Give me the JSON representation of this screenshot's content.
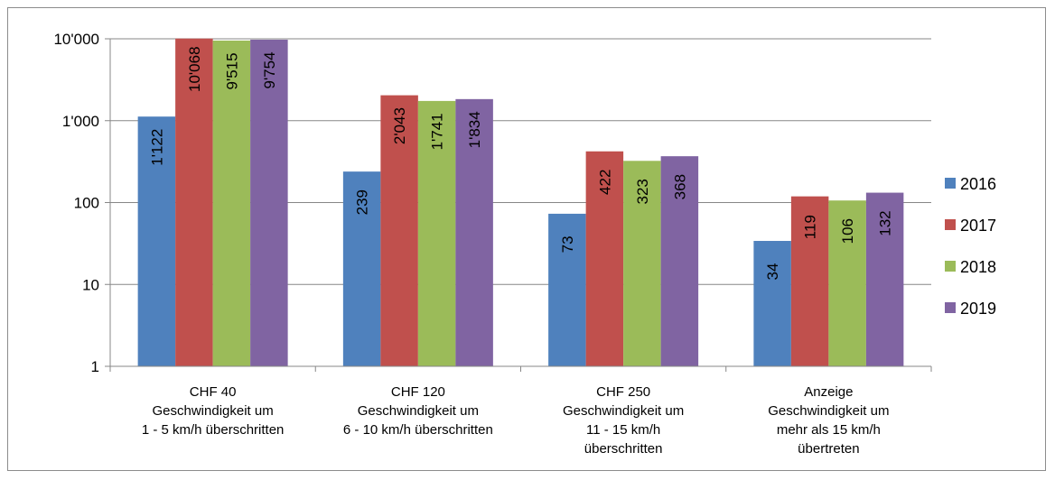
{
  "chart_data": {
    "type": "bar",
    "yscale": "log",
    "ylim": [
      1,
      10000
    ],
    "yticks": [
      {
        "value": 1,
        "label": "1"
      },
      {
        "value": 10,
        "label": "10"
      },
      {
        "value": 100,
        "label": "100"
      },
      {
        "value": 1000,
        "label": "1'000"
      },
      {
        "value": 10000,
        "label": "10'000"
      }
    ],
    "grid": true,
    "legend_position": "right",
    "categories": [
      [
        "CHF  40",
        "Geschwindigkeit um",
        "1 - 5 km/h überschritten"
      ],
      [
        "CHF  120",
        "Geschwindigkeit um",
        "6 - 10 km/h überschritten"
      ],
      [
        "CHF  250",
        "Geschwindigkeit um",
        "11 - 15 km/h",
        "überschritten"
      ],
      [
        "Anzeige",
        "Geschwindigkeit um",
        "mehr als 15 km/h",
        "übertreten"
      ]
    ],
    "series": [
      {
        "name": "2016",
        "color": "#4f81bd",
        "values": [
          1122,
          239,
          73,
          34
        ],
        "labels": [
          "1'122",
          "239",
          "73",
          "34"
        ]
      },
      {
        "name": "2017",
        "color": "#c0504d",
        "values": [
          10068,
          2043,
          422,
          119
        ],
        "labels": [
          "10'068",
          "2'043",
          "422",
          "119"
        ]
      },
      {
        "name": "2018",
        "color": "#9bbb59",
        "values": [
          9515,
          1741,
          323,
          106
        ],
        "labels": [
          "9'515",
          "1'741",
          "323",
          "106"
        ]
      },
      {
        "name": "2019",
        "color": "#8064a2",
        "values": [
          9754,
          1834,
          368,
          132
        ],
        "labels": [
          "9'754",
          "1'834",
          "368",
          "132"
        ]
      }
    ]
  }
}
